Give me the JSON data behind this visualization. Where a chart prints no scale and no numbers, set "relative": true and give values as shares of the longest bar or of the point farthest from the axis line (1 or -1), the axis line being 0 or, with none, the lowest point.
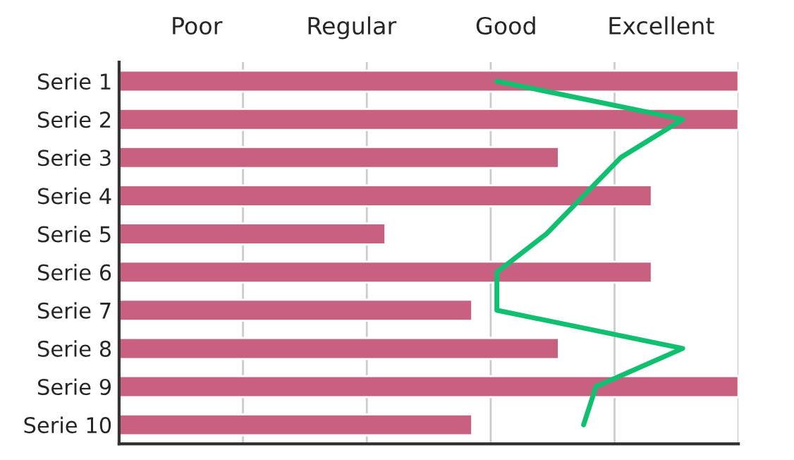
{
  "chart_data": {
    "type": "bar",
    "orientation": "horizontal",
    "relative": true,
    "grid": "x",
    "legend": false,
    "categories": [
      "Serie 1",
      "Serie 2",
      "Serie 3",
      "Serie 4",
      "Serie 5",
      "Serie 6",
      "Serie 7",
      "Serie 8",
      "Serie 9",
      "Serie 10"
    ],
    "series": [
      {
        "color": "#c86080",
        "values": [
          1,
          1,
          0.71,
          0.86,
          0.43,
          0.86,
          0.57,
          0.71,
          1,
          0.57
        ]
      },
      {
        "type": "line",
        "color": "#10c070",
        "values": [
          0.61,
          0.91,
          0.81,
          0.75,
          0.69,
          0.61,
          0.61,
          0.91,
          0.77,
          0.75
        ]
      }
    ],
    "annotations": [
      "Poor",
      "Regular",
      "Good",
      "Excellent"
    ]
  }
}
